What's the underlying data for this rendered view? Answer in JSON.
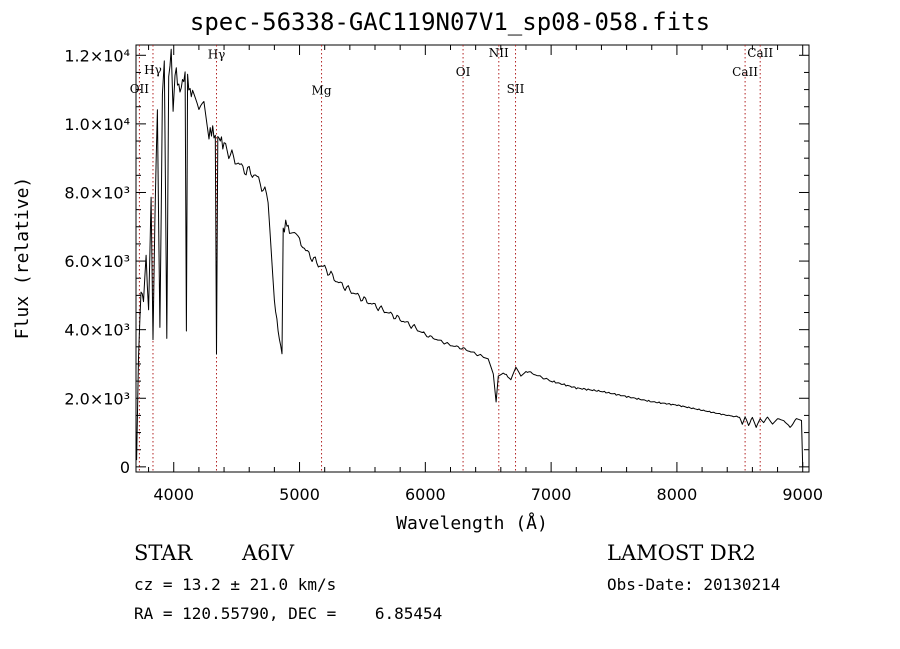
{
  "chart_data": {
    "type": "line",
    "title": "spec-56338-GAC119N07V1_sp08-058.fits",
    "xlabel": "Wavelength (Å)",
    "ylabel": "Flux (relative)",
    "xlim": [
      3700,
      9050
    ],
    "ylim": [
      -150,
      12300
    ],
    "x_ticks": [
      4000,
      5000,
      6000,
      7000,
      8000,
      9000
    ],
    "y_ticks": [
      {
        "value": 0,
        "label": "0"
      },
      {
        "value": 2000,
        "label": "2.0×10³"
      },
      {
        "value": 4000,
        "label": "4.0×10³"
      },
      {
        "value": 6000,
        "label": "6.0×10³"
      },
      {
        "value": 8000,
        "label": "8.0×10³"
      },
      {
        "value": 10000,
        "label": "1.0×10⁴"
      },
      {
        "value": 12000,
        "label": "1.2×10⁴"
      }
    ],
    "lines": [
      {
        "name": "OII",
        "x": 3727,
        "label_value": 10900
      },
      {
        "name": "Hγ",
        "x": 3835,
        "label_value": 11450
      },
      {
        "name": "Hγ",
        "x": 4340,
        "label_value": 11900
      },
      {
        "name": "Mg",
        "x": 5175,
        "label_value": 10850
      },
      {
        "name": "OI",
        "x": 6300,
        "label_value": 11400
      },
      {
        "name": "NII",
        "x": 6584,
        "label_value": 11950
      },
      {
        "name": "SII",
        "x": 6717,
        "label_value": 10900
      },
      {
        "name": "CaII",
        "x": 8542,
        "label_value": 11400
      },
      {
        "name": "CaII",
        "x": 8662,
        "label_value": 11950
      }
    ],
    "series": [
      {
        "x": [
          3705,
          3720,
          3740,
          3760,
          3780,
          3800,
          3820,
          3835,
          3850,
          3870,
          3890,
          3910,
          3925,
          3945,
          3960,
          3970,
          3980,
          3995,
          4010,
          4030,
          4060,
          4090,
          4101,
          4110,
          4130,
          4160,
          4200,
          4240,
          4280,
          4310,
          4330,
          4340,
          4350,
          4370,
          4400,
          4450,
          4500,
          4550,
          4600,
          4650,
          4700,
          4750,
          4800,
          4830,
          4850,
          4861,
          4870,
          4890,
          4920,
          4960,
          5000,
          5050,
          5100,
          5150,
          5200,
          5300,
          5400,
          5500,
          5600,
          5700,
          5800,
          5900,
          6000,
          6100,
          6200,
          6300,
          6400,
          6500,
          6540,
          6563,
          6580,
          6620,
          6680,
          6720,
          6760,
          6800,
          6900,
          7000,
          7200,
          7400,
          7600,
          7800,
          8000,
          8200,
          8400,
          8498,
          8520,
          8542,
          8570,
          8600,
          8630,
          8662,
          8690,
          8720,
          8760,
          8800,
          8850,
          8900,
          8950,
          8990,
          9000
        ],
        "y": [
          200,
          3200,
          5200,
          4800,
          6200,
          4500,
          7800,
          3700,
          7200,
          10500,
          4000,
          10800,
          11800,
          3700,
          11500,
          11700,
          12000,
          10500,
          11600,
          11200,
          11000,
          11500,
          4000,
          11200,
          11000,
          10800,
          10200,
          10500,
          9600,
          9900,
          9500,
          3300,
          9700,
          9500,
          9400,
          9100,
          8900,
          8700,
          8600,
          8500,
          8200,
          7800,
          4800,
          4000,
          3500,
          3300,
          6900,
          7100,
          6900,
          6800,
          6600,
          6300,
          6100,
          5900,
          5800,
          5400,
          5150,
          4900,
          4700,
          4500,
          4300,
          4100,
          3850,
          3700,
          3550,
          3450,
          3300,
          3150,
          2700,
          1900,
          2650,
          2750,
          2550,
          2900,
          2650,
          2800,
          2650,
          2500,
          2300,
          2200,
          2050,
          1900,
          1800,
          1650,
          1500,
          1450,
          1250,
          1450,
          1200,
          1450,
          1150,
          1400,
          1300,
          1450,
          1250,
          1400,
          1350,
          1150,
          1400,
          1350,
          0
        ]
      }
    ],
    "grid": false,
    "legend": "none"
  },
  "info": {
    "object_type": "STAR",
    "subclass": "A6IV",
    "survey": "LAMOST DR2",
    "redshift": "cz = 13.2 ± 21.0 km/s",
    "obs_date": "Obs-Date: 20130214",
    "coords": "RA = 120.55790, DEC =    6.85454"
  },
  "colors": {
    "spectrum": "#000000",
    "line_markers": "#b22222",
    "axes": "#000000",
    "background": "#ffffff"
  }
}
